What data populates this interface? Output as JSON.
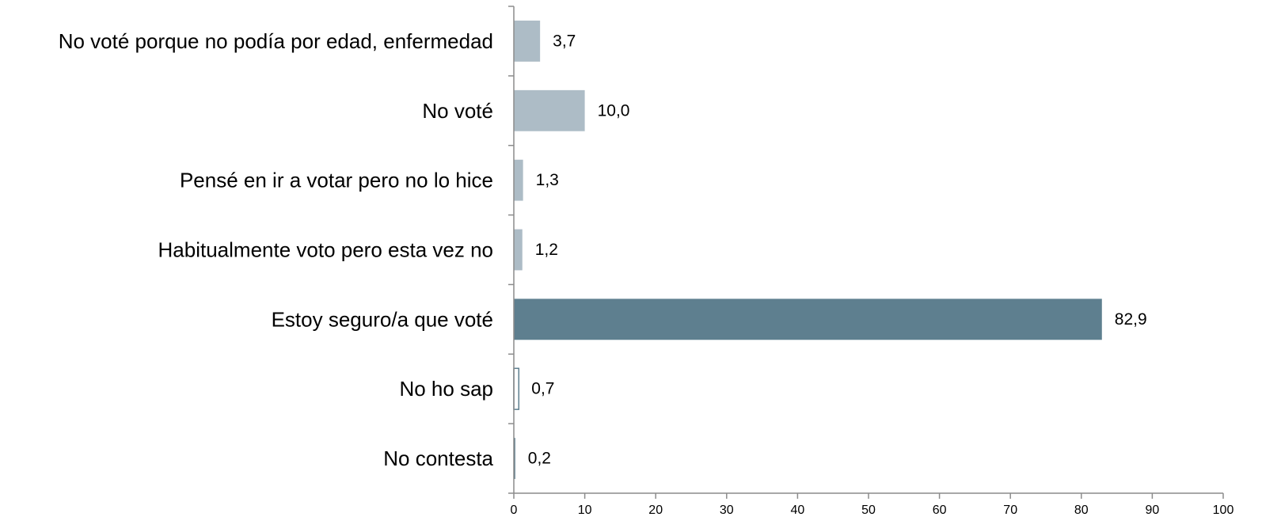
{
  "chart_data": {
    "type": "bar",
    "orientation": "horizontal",
    "categories": [
      "No voté porque no podía por edad, enfermedad",
      "No voté",
      "Pensé en ir a votar pero no lo hice",
      "Habitualmente voto pero esta vez no",
      "Estoy seguro/a que voté",
      "No ho sap",
      "No contesta"
    ],
    "values": [
      3.7,
      10.0,
      1.3,
      1.2,
      82.9,
      0.7,
      0.2
    ],
    "value_labels": [
      "3,7",
      "10,0",
      "1,3",
      "1,2",
      "82,9",
      "0,7",
      "0,2"
    ],
    "bar_colors": [
      "#adbcc6",
      "#adbcc6",
      "#adbcc6",
      "#adbcc6",
      "#5e7f8f",
      "#ffffff",
      "#5e7f8f"
    ],
    "bar_strokes": [
      "none",
      "none",
      "none",
      "none",
      "none",
      "#5e7f8f",
      "none"
    ],
    "xlim": [
      0,
      100
    ],
    "xticks": [
      0,
      10,
      20,
      30,
      40,
      50,
      60,
      70,
      80,
      90,
      100
    ],
    "xtick_labels": [
      "0",
      "10",
      "20",
      "30",
      "40",
      "50",
      "60",
      "70",
      "80",
      "90",
      "100"
    ],
    "grid": false,
    "legend": "none"
  }
}
